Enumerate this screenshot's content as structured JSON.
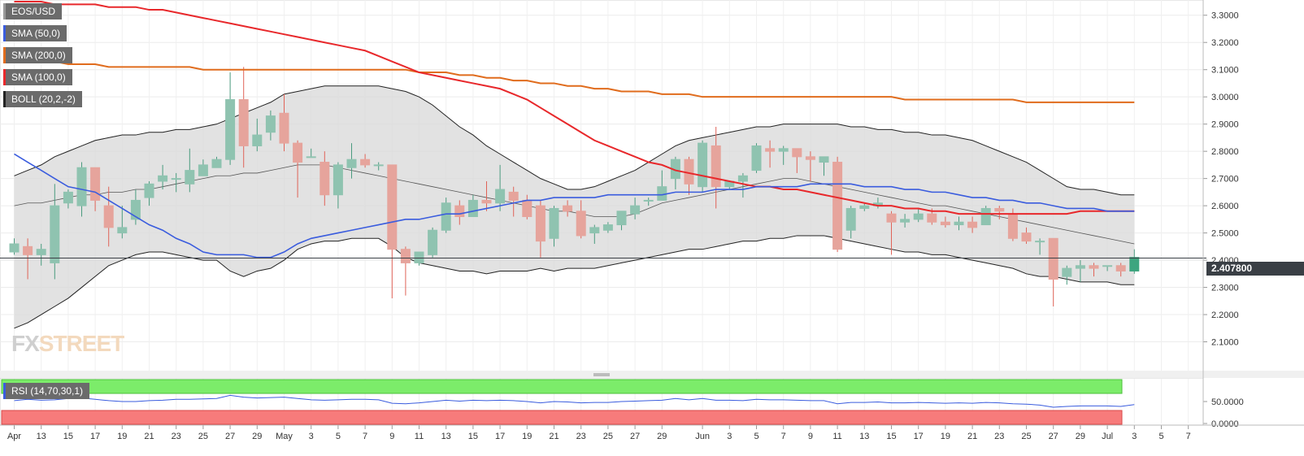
{
  "legend": {
    "symbol": "EOS/USD",
    "sma50": "SMA (50,0)",
    "sma200": "SMA (200,0)",
    "sma100": "SMA (100,0)",
    "boll": "BOLL (20,2,-2)",
    "rsi": "RSI (14,70,30,1)"
  },
  "watermark": {
    "fx": "FX",
    "street": "STREET"
  },
  "current_price": {
    "value": 2.4078,
    "label": "2.407800"
  },
  "colors": {
    "up": "#4a9b7f",
    "up_light": "#8fc3b0",
    "down": "#e06358",
    "down_light": "#e6a49c",
    "sma50": "#3a5cde",
    "sma200": "#e06c1d",
    "sma100": "#e8282b",
    "boll": "#222222",
    "band_fill": "#d8d8d8",
    "rsi_over": "#7cec6a",
    "rsi_under": "#f77b7b",
    "rsi_line": "#3a5cde"
  },
  "chart_data": {
    "type": "candlestick",
    "y_axis": {
      "min": 2.0,
      "max": 3.35,
      "ticks": [
        "3.3000",
        "3.2000",
        "3.1000",
        "3.0000",
        "2.9000",
        "2.8000",
        "2.7000",
        "2.6000",
        "2.5000",
        "2.4000",
        "2.3000",
        "2.2000",
        "2.1000"
      ]
    },
    "x_axis": {
      "ticks": [
        {
          "i": 0,
          "label": "Apr"
        },
        {
          "i": 2,
          "label": "13"
        },
        {
          "i": 4,
          "label": "15"
        },
        {
          "i": 6,
          "label": "17"
        },
        {
          "i": 8,
          "label": "19"
        },
        {
          "i": 10,
          "label": "21"
        },
        {
          "i": 12,
          "label": "23"
        },
        {
          "i": 14,
          "label": "25"
        },
        {
          "i": 16,
          "label": "27"
        },
        {
          "i": 18,
          "label": "29"
        },
        {
          "i": 20,
          "label": "May"
        },
        {
          "i": 22,
          "label": "3"
        },
        {
          "i": 24,
          "label": "5"
        },
        {
          "i": 26,
          "label": "7"
        },
        {
          "i": 28,
          "label": "9"
        },
        {
          "i": 30,
          "label": "11"
        },
        {
          "i": 32,
          "label": "13"
        },
        {
          "i": 34,
          "label": "15"
        },
        {
          "i": 36,
          "label": "17"
        },
        {
          "i": 38,
          "label": "19"
        },
        {
          "i": 40,
          "label": "21"
        },
        {
          "i": 42,
          "label": "23"
        },
        {
          "i": 44,
          "label": "25"
        },
        {
          "i": 46,
          "label": "27"
        },
        {
          "i": 48,
          "label": "29"
        },
        {
          "i": 51,
          "label": "Jun"
        },
        {
          "i": 53,
          "label": "3"
        },
        {
          "i": 55,
          "label": "5"
        },
        {
          "i": 57,
          "label": "7"
        },
        {
          "i": 59,
          "label": "9"
        },
        {
          "i": 61,
          "label": "11"
        },
        {
          "i": 63,
          "label": "13"
        },
        {
          "i": 65,
          "label": "15"
        },
        {
          "i": 67,
          "label": "17"
        },
        {
          "i": 69,
          "label": "19"
        },
        {
          "i": 71,
          "label": "21"
        },
        {
          "i": 73,
          "label": "23"
        },
        {
          "i": 75,
          "label": "25"
        },
        {
          "i": 77,
          "label": "27"
        },
        {
          "i": 79,
          "label": "29"
        },
        {
          "i": 81,
          "label": "Jul"
        },
        {
          "i": 83,
          "label": "3"
        },
        {
          "i": 85,
          "label": "5"
        },
        {
          "i": 87,
          "label": "7"
        }
      ]
    },
    "candles": [
      [
        2.43,
        2.46,
        2.42,
        2.48
      ],
      [
        2.45,
        2.42,
        2.33,
        2.48
      ],
      [
        2.42,
        2.44,
        2.38,
        2.46
      ],
      [
        2.39,
        2.6,
        2.33,
        2.68
      ],
      [
        2.61,
        2.65,
        2.59,
        2.66
      ],
      [
        2.6,
        2.74,
        2.56,
        2.76
      ],
      [
        2.74,
        2.62,
        2.58,
        2.74
      ],
      [
        2.6,
        2.52,
        2.45,
        2.67
      ],
      [
        2.5,
        2.52,
        2.48,
        2.6
      ],
      [
        2.55,
        2.62,
        2.53,
        2.66
      ],
      [
        2.63,
        2.68,
        2.6,
        2.69
      ],
      [
        2.69,
        2.71,
        2.66,
        2.75
      ],
      [
        2.7,
        2.7,
        2.65,
        2.72
      ],
      [
        2.68,
        2.73,
        2.65,
        2.81
      ],
      [
        2.71,
        2.75,
        2.71,
        2.77
      ],
      [
        2.74,
        2.77,
        2.74,
        2.78
      ],
      [
        2.77,
        2.99,
        2.75,
        3.09
      ],
      [
        2.99,
        2.82,
        2.74,
        3.11
      ],
      [
        2.82,
        2.86,
        2.8,
        2.92
      ],
      [
        2.87,
        2.93,
        2.84,
        2.95
      ],
      [
        2.94,
        2.83,
        2.8,
        3.01
      ],
      [
        2.83,
        2.76,
        2.63,
        2.84
      ],
      [
        2.78,
        2.78,
        2.78,
        2.81
      ],
      [
        2.76,
        2.64,
        2.6,
        2.8
      ],
      [
        2.64,
        2.75,
        2.59,
        2.76
      ],
      [
        2.74,
        2.77,
        2.7,
        2.83
      ],
      [
        2.77,
        2.75,
        2.74,
        2.79
      ],
      [
        2.75,
        2.75,
        2.73,
        2.76
      ],
      [
        2.75,
        2.44,
        2.26,
        2.75
      ],
      [
        2.44,
        2.39,
        2.27,
        2.45
      ],
      [
        2.39,
        2.43,
        2.38,
        2.43
      ],
      [
        2.42,
        2.51,
        2.41,
        2.52
      ],
      [
        2.51,
        2.61,
        2.5,
        2.63
      ],
      [
        2.6,
        2.56,
        2.53,
        2.62
      ],
      [
        2.56,
        2.62,
        2.56,
        2.64
      ],
      [
        2.62,
        2.61,
        2.58,
        2.69
      ],
      [
        2.61,
        2.66,
        2.58,
        2.75
      ],
      [
        2.65,
        2.62,
        2.56,
        2.67
      ],
      [
        2.62,
        2.56,
        2.55,
        2.64
      ],
      [
        2.6,
        2.47,
        2.41,
        2.62
      ],
      [
        2.48,
        2.59,
        2.45,
        2.6
      ],
      [
        2.6,
        2.58,
        2.56,
        2.62
      ],
      [
        2.58,
        2.49,
        2.48,
        2.62
      ],
      [
        2.5,
        2.52,
        2.46,
        2.53
      ],
      [
        2.51,
        2.53,
        2.5,
        2.54
      ],
      [
        2.53,
        2.58,
        2.51,
        2.58
      ],
      [
        2.57,
        2.6,
        2.55,
        2.63
      ],
      [
        2.62,
        2.62,
        2.6,
        2.63
      ],
      [
        2.62,
        2.67,
        2.62,
        2.73
      ],
      [
        2.7,
        2.77,
        2.66,
        2.78
      ],
      [
        2.77,
        2.68,
        2.64,
        2.78
      ],
      [
        2.67,
        2.83,
        2.65,
        2.84
      ],
      [
        2.82,
        2.67,
        2.59,
        2.89
      ],
      [
        2.67,
        2.69,
        2.66,
        2.69
      ],
      [
        2.69,
        2.71,
        2.63,
        2.72
      ],
      [
        2.73,
        2.82,
        2.72,
        2.83
      ],
      [
        2.81,
        2.8,
        2.74,
        2.84
      ],
      [
        2.8,
        2.81,
        2.75,
        2.82
      ],
      [
        2.81,
        2.78,
        2.72,
        2.81
      ],
      [
        2.78,
        2.77,
        2.69,
        2.8
      ],
      [
        2.76,
        2.78,
        2.71,
        2.78
      ],
      [
        2.76,
        2.44,
        2.43,
        2.78
      ],
      [
        2.51,
        2.59,
        2.48,
        2.6
      ],
      [
        2.59,
        2.6,
        2.58,
        2.61
      ],
      [
        2.6,
        2.61,
        2.59,
        2.63
      ],
      [
        2.57,
        2.54,
        2.42,
        2.58
      ],
      [
        2.54,
        2.55,
        2.52,
        2.57
      ],
      [
        2.55,
        2.57,
        2.54,
        2.59
      ],
      [
        2.57,
        2.54,
        2.53,
        2.59
      ],
      [
        2.54,
        2.53,
        2.52,
        2.56
      ],
      [
        2.53,
        2.54,
        2.51,
        2.56
      ],
      [
        2.54,
        2.52,
        2.5,
        2.56
      ],
      [
        2.53,
        2.59,
        2.53,
        2.6
      ],
      [
        2.59,
        2.58,
        2.55,
        2.6
      ],
      [
        2.57,
        2.48,
        2.47,
        2.59
      ],
      [
        2.5,
        2.47,
        2.46,
        2.52
      ],
      [
        2.47,
        2.47,
        2.42,
        2.48
      ],
      [
        2.48,
        2.33,
        2.23,
        2.48
      ],
      [
        2.34,
        2.37,
        2.31,
        2.38
      ],
      [
        2.37,
        2.38,
        2.32,
        2.4
      ],
      [
        2.38,
        2.37,
        2.34,
        2.39
      ],
      [
        2.38,
        2.38,
        2.36,
        2.38
      ],
      [
        2.38,
        2.36,
        2.34,
        2.39
      ],
      [
        2.36,
        2.41,
        2.35,
        2.44
      ]
    ],
    "sma50_values": [
      2.79,
      2.76,
      2.73,
      2.7,
      2.67,
      2.66,
      2.65,
      2.62,
      2.59,
      2.56,
      2.53,
      2.51,
      2.48,
      2.46,
      2.43,
      2.42,
      2.42,
      2.42,
      2.41,
      2.41,
      2.43,
      2.46,
      2.48,
      2.49,
      2.5,
      2.51,
      2.52,
      2.53,
      2.54,
      2.55,
      2.55,
      2.56,
      2.57,
      2.57,
      2.58,
      2.59,
      2.6,
      2.61,
      2.62,
      2.62,
      2.63,
      2.63,
      2.63,
      2.63,
      2.64,
      2.64,
      2.64,
      2.64,
      2.64,
      2.65,
      2.65,
      2.65,
      2.66,
      2.66,
      2.66,
      2.67,
      2.67,
      2.67,
      2.67,
      2.68,
      2.68,
      2.68,
      2.68,
      2.67,
      2.67,
      2.67,
      2.66,
      2.66,
      2.65,
      2.65,
      2.64,
      2.63,
      2.63,
      2.62,
      2.62,
      2.61,
      2.61,
      2.6,
      2.59,
      2.59,
      2.59,
      2.58,
      2.58,
      2.58
    ],
    "sma200_values": [
      3.14,
      3.13,
      3.13,
      3.13,
      3.12,
      3.12,
      3.12,
      3.11,
      3.11,
      3.11,
      3.11,
      3.11,
      3.11,
      3.11,
      3.1,
      3.1,
      3.1,
      3.1,
      3.1,
      3.1,
      3.1,
      3.1,
      3.1,
      3.1,
      3.1,
      3.1,
      3.1,
      3.1,
      3.1,
      3.1,
      3.09,
      3.09,
      3.09,
      3.08,
      3.08,
      3.07,
      3.07,
      3.06,
      3.06,
      3.05,
      3.05,
      3.04,
      3.04,
      3.03,
      3.03,
      3.02,
      3.02,
      3.02,
      3.01,
      3.01,
      3.01,
      3.0,
      3.0,
      3.0,
      3.0,
      3.0,
      3.0,
      3.0,
      3.0,
      3.0,
      3.0,
      3.0,
      3.0,
      3.0,
      3.0,
      3.0,
      2.99,
      2.99,
      2.99,
      2.99,
      2.99,
      2.99,
      2.99,
      2.99,
      2.99,
      2.98,
      2.98,
      2.98,
      2.98,
      2.98,
      2.98,
      2.98,
      2.98,
      2.98
    ],
    "sma100_values": [
      3.35,
      3.35,
      3.35,
      3.34,
      3.34,
      3.34,
      3.34,
      3.33,
      3.33,
      3.33,
      3.32,
      3.32,
      3.31,
      3.3,
      3.29,
      3.28,
      3.27,
      3.26,
      3.25,
      3.24,
      3.23,
      3.22,
      3.21,
      3.2,
      3.19,
      3.18,
      3.17,
      3.15,
      3.13,
      3.11,
      3.09,
      3.08,
      3.07,
      3.06,
      3.05,
      3.04,
      3.03,
      3.01,
      2.99,
      2.96,
      2.93,
      2.9,
      2.87,
      2.84,
      2.82,
      2.8,
      2.78,
      2.76,
      2.75,
      2.73,
      2.72,
      2.71,
      2.7,
      2.69,
      2.68,
      2.67,
      2.67,
      2.66,
      2.66,
      2.65,
      2.64,
      2.63,
      2.62,
      2.61,
      2.6,
      2.6,
      2.59,
      2.59,
      2.58,
      2.58,
      2.57,
      2.57,
      2.57,
      2.57,
      2.57,
      2.57,
      2.57,
      2.57,
      2.57,
      2.58,
      2.58,
      2.58,
      2.58,
      2.58
    ],
    "boll_mid": [
      2.6,
      2.61,
      2.61,
      2.62,
      2.63,
      2.64,
      2.64,
      2.65,
      2.65,
      2.66,
      2.66,
      2.67,
      2.68,
      2.69,
      2.7,
      2.71,
      2.71,
      2.72,
      2.72,
      2.73,
      2.74,
      2.75,
      2.75,
      2.75,
      2.74,
      2.73,
      2.72,
      2.71,
      2.7,
      2.69,
      2.68,
      2.67,
      2.66,
      2.65,
      2.64,
      2.63,
      2.62,
      2.61,
      2.6,
      2.59,
      2.58,
      2.58,
      2.57,
      2.56,
      2.56,
      2.56,
      2.57,
      2.59,
      2.61,
      2.62,
      2.63,
      2.64,
      2.65,
      2.66,
      2.67,
      2.68,
      2.69,
      2.7,
      2.7,
      2.69,
      2.68,
      2.67,
      2.66,
      2.65,
      2.64,
      2.63,
      2.62,
      2.61,
      2.6,
      2.6,
      2.59,
      2.58,
      2.57,
      2.56,
      2.55,
      2.54,
      2.53,
      2.52,
      2.51,
      2.5,
      2.49,
      2.48,
      2.47,
      2.46
    ],
    "boll_upper": [
      2.71,
      2.73,
      2.75,
      2.78,
      2.8,
      2.82,
      2.84,
      2.85,
      2.86,
      2.86,
      2.87,
      2.87,
      2.88,
      2.88,
      2.89,
      2.9,
      2.92,
      2.94,
      2.96,
      2.98,
      3.01,
      3.02,
      3.03,
      3.04,
      3.04,
      3.04,
      3.04,
      3.04,
      3.03,
      3.02,
      3.0,
      2.97,
      2.93,
      2.89,
      2.86,
      2.82,
      2.79,
      2.76,
      2.73,
      2.7,
      2.68,
      2.66,
      2.66,
      2.67,
      2.69,
      2.71,
      2.73,
      2.76,
      2.79,
      2.82,
      2.84,
      2.85,
      2.86,
      2.87,
      2.88,
      2.89,
      2.89,
      2.9,
      2.9,
      2.9,
      2.9,
      2.9,
      2.89,
      2.89,
      2.88,
      2.88,
      2.87,
      2.87,
      2.86,
      2.86,
      2.85,
      2.84,
      2.82,
      2.8,
      2.78,
      2.76,
      2.73,
      2.7,
      2.67,
      2.66,
      2.66,
      2.65,
      2.64,
      2.64
    ],
    "boll_lower": [
      2.15,
      2.17,
      2.2,
      2.23,
      2.26,
      2.3,
      2.34,
      2.38,
      2.4,
      2.42,
      2.43,
      2.43,
      2.42,
      2.41,
      2.4,
      2.4,
      2.36,
      2.34,
      2.36,
      2.37,
      2.4,
      2.44,
      2.46,
      2.47,
      2.47,
      2.48,
      2.48,
      2.48,
      2.45,
      2.41,
      2.39,
      2.38,
      2.37,
      2.36,
      2.36,
      2.35,
      2.36,
      2.36,
      2.36,
      2.37,
      2.36,
      2.37,
      2.37,
      2.37,
      2.38,
      2.39,
      2.4,
      2.41,
      2.42,
      2.43,
      2.44,
      2.44,
      2.45,
      2.46,
      2.47,
      2.47,
      2.48,
      2.48,
      2.49,
      2.49,
      2.49,
      2.48,
      2.47,
      2.46,
      2.45,
      2.44,
      2.43,
      2.43,
      2.42,
      2.42,
      2.41,
      2.4,
      2.39,
      2.38,
      2.37,
      2.35,
      2.34,
      2.34,
      2.33,
      2.32,
      2.32,
      2.32,
      2.31,
      2.31
    ],
    "rsi": {
      "y_ticks": [
        "50.0000",
        "0.0000"
      ],
      "overbought": 70,
      "oversold": 30,
      "values": [
        52,
        55,
        53,
        54,
        57,
        58,
        55,
        52,
        50,
        50,
        52,
        53,
        55,
        55,
        56,
        57,
        64,
        60,
        58,
        59,
        60,
        57,
        54,
        53,
        54,
        55,
        55,
        54,
        46,
        45,
        47,
        50,
        53,
        51,
        53,
        52,
        53,
        52,
        50,
        47,
        50,
        49,
        47,
        48,
        48,
        50,
        51,
        52,
        53,
        57,
        54,
        57,
        53,
        53,
        52,
        55,
        54,
        54,
        53,
        52,
        52,
        45,
        48,
        48,
        49,
        47,
        47,
        48,
        47,
        46,
        47,
        46,
        48,
        47,
        45,
        44,
        42,
        37,
        39,
        40,
        40,
        40,
        39,
        43
      ]
    }
  }
}
